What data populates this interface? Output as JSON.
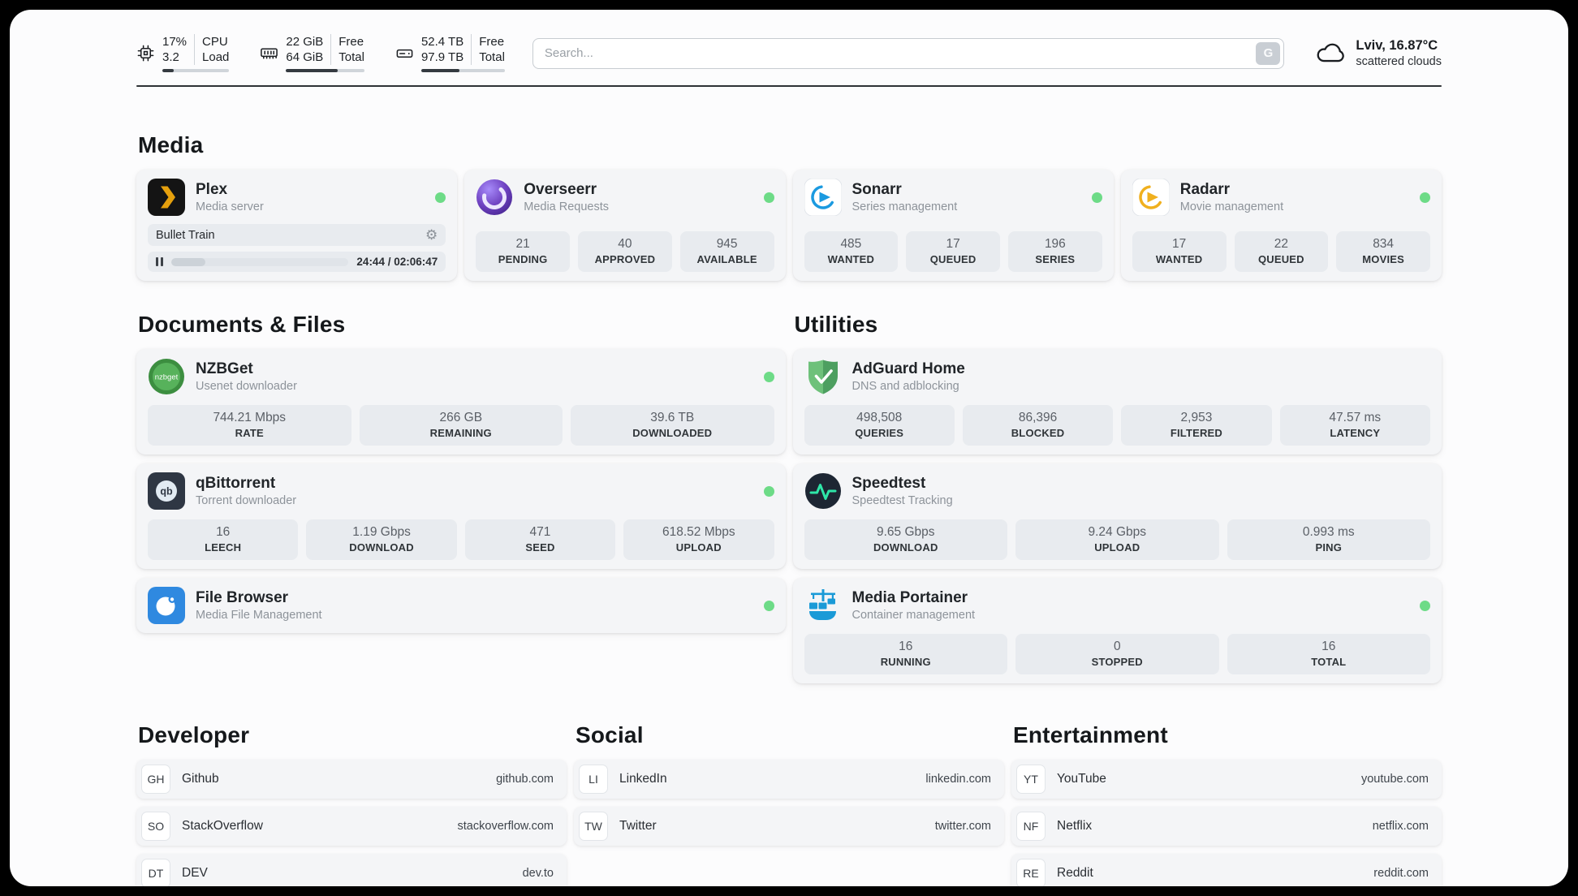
{
  "colors": {
    "status_online": "#6ddb87",
    "plex_accent": "#e5a00d",
    "panel_bg": "#fcfcfd",
    "card_bg": "#f4f5f7",
    "stat_bg": "#e8ebef"
  },
  "icons": {
    "gear": "⚙",
    "search_button": "G"
  },
  "header": {
    "cpu": {
      "value1": "17%",
      "label1": "CPU",
      "value2": "3.2",
      "label2": "Load",
      "bar": "17%"
    },
    "ram": {
      "value1": "22 GiB",
      "label1": "Free",
      "value2": "64 GiB",
      "label2": "Total",
      "bar": "66%"
    },
    "disk": {
      "value1": "52.4 TB",
      "label1": "Free",
      "value2": "97.9 TB",
      "label2": "Total",
      "bar": "46%"
    },
    "search": {
      "placeholder": "Search..."
    },
    "weather": {
      "location": "Lviv, 16.87°C",
      "condition": "scattered clouds"
    }
  },
  "media": {
    "title": "Media",
    "plex": {
      "name": "Plex",
      "desc": "Media server",
      "now_playing": "Bullet Train",
      "time": "24:44 / 02:06:47",
      "progress": "19.5%"
    },
    "overseerr": {
      "name": "Overseerr",
      "desc": "Media Requests",
      "stats": [
        {
          "value": "21",
          "label": "PENDING"
        },
        {
          "value": "40",
          "label": "APPROVED"
        },
        {
          "value": "945",
          "label": "AVAILABLE"
        }
      ]
    },
    "sonarr": {
      "name": "Sonarr",
      "desc": "Series management",
      "stats": [
        {
          "value": "485",
          "label": "WANTED"
        },
        {
          "value": "17",
          "label": "QUEUED"
        },
        {
          "value": "196",
          "label": "SERIES"
        }
      ]
    },
    "radarr": {
      "name": "Radarr",
      "desc": "Movie management",
      "stats": [
        {
          "value": "17",
          "label": "WANTED"
        },
        {
          "value": "22",
          "label": "QUEUED"
        },
        {
          "value": "834",
          "label": "MOVIES"
        }
      ]
    }
  },
  "documents": {
    "title": "Documents & Files",
    "nzbget": {
      "name": "NZBGet",
      "desc": "Usenet downloader",
      "stats": [
        {
          "value": "744.21 Mbps",
          "label": "RATE"
        },
        {
          "value": "266 GB",
          "label": "REMAINING"
        },
        {
          "value": "39.6 TB",
          "label": "DOWNLOADED"
        }
      ]
    },
    "qbittorrent": {
      "name": "qBittorrent",
      "desc": "Torrent downloader",
      "stats": [
        {
          "value": "16",
          "label": "LEECH"
        },
        {
          "value": "1.19 Gbps",
          "label": "DOWNLOAD"
        },
        {
          "value": "471",
          "label": "SEED"
        },
        {
          "value": "618.52 Mbps",
          "label": "UPLOAD"
        }
      ]
    },
    "filebrowser": {
      "name": "File Browser",
      "desc": "Media File Management"
    }
  },
  "utilities": {
    "title": "Utilities",
    "adguard": {
      "name": "AdGuard Home",
      "desc": "DNS and adblocking",
      "stats": [
        {
          "value": "498,508",
          "label": "QUERIES"
        },
        {
          "value": "86,396",
          "label": "BLOCKED"
        },
        {
          "value": "2,953",
          "label": "FILTERED"
        },
        {
          "value": "47.57 ms",
          "label": "LATENCY"
        }
      ]
    },
    "speedtest": {
      "name": "Speedtest",
      "desc": "Speedtest Tracking",
      "stats": [
        {
          "value": "9.65 Gbps",
          "label": "DOWNLOAD"
        },
        {
          "value": "9.24 Gbps",
          "label": "UPLOAD"
        },
        {
          "value": "0.993 ms",
          "label": "PING"
        }
      ]
    },
    "portainer": {
      "name": "Media Portainer",
      "desc": "Container management",
      "stats": [
        {
          "value": "16",
          "label": "RUNNING"
        },
        {
          "value": "0",
          "label": "STOPPED"
        },
        {
          "value": "16",
          "label": "TOTAL"
        }
      ]
    }
  },
  "bookmarks": {
    "developer": {
      "title": "Developer",
      "items": [
        {
          "abbr": "GH",
          "name": "Github",
          "url": "github.com"
        },
        {
          "abbr": "SO",
          "name": "StackOverflow",
          "url": "stackoverflow.com"
        },
        {
          "abbr": "DT",
          "name": "DEV",
          "url": "dev.to"
        }
      ]
    },
    "social": {
      "title": "Social",
      "items": [
        {
          "abbr": "LI",
          "name": "LinkedIn",
          "url": "linkedin.com"
        },
        {
          "abbr": "TW",
          "name": "Twitter",
          "url": "twitter.com"
        }
      ]
    },
    "entertainment": {
      "title": "Entertainment",
      "items": [
        {
          "abbr": "YT",
          "name": "YouTube",
          "url": "youtube.com"
        },
        {
          "abbr": "NF",
          "name": "Netflix",
          "url": "netflix.com"
        },
        {
          "abbr": "RE",
          "name": "Reddit",
          "url": "reddit.com"
        }
      ]
    }
  }
}
